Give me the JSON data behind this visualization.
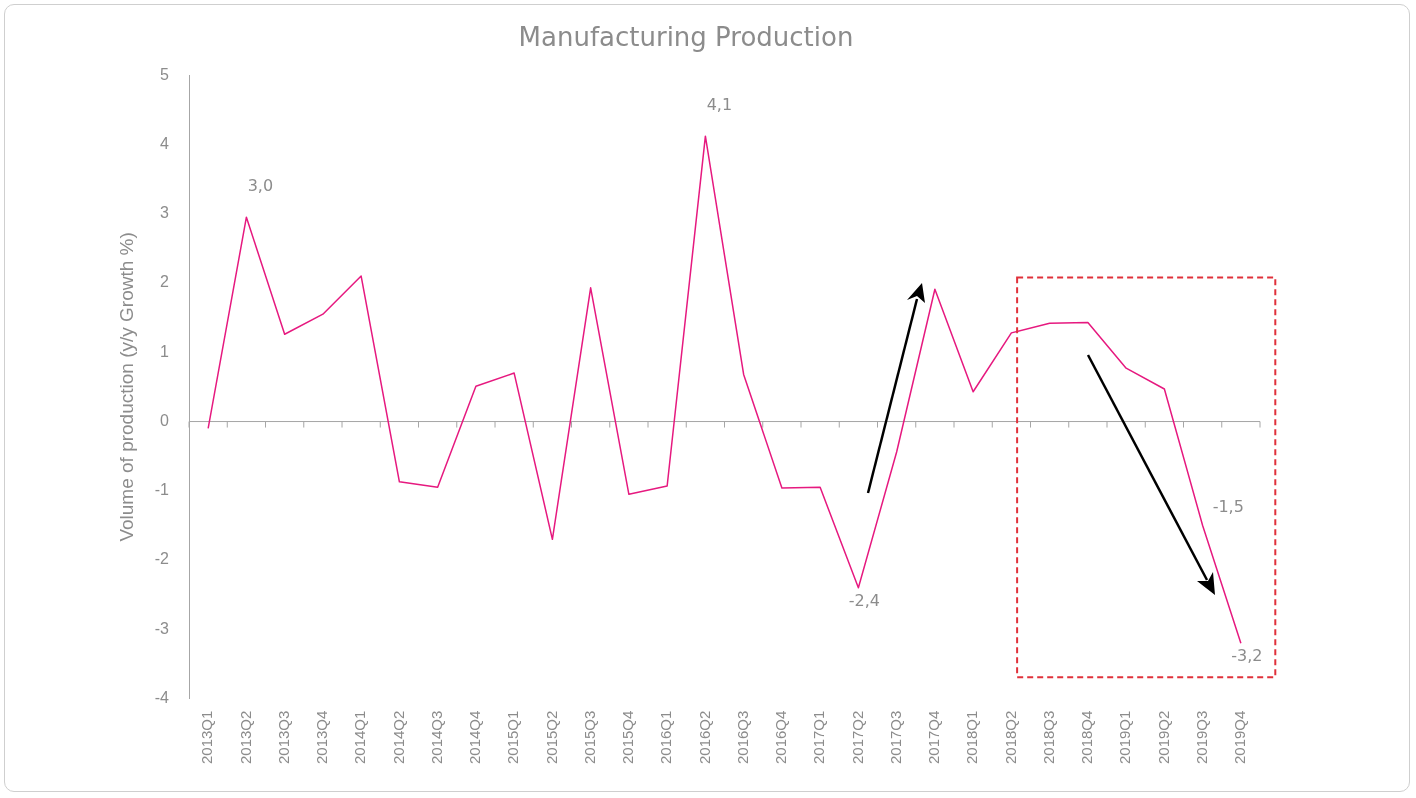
{
  "chart_data": {
    "type": "line",
    "title": "Manufacturing Production",
    "ylabel": "Volume of production (y/y Growth %)",
    "categories": [
      "2013Q1",
      "2013Q2",
      "2013Q3",
      "2013Q4",
      "2014Q1",
      "2014Q2",
      "2014Q3",
      "2014Q4",
      "2015Q1",
      "2015Q2",
      "2015Q3",
      "2015Q4",
      "2016Q1",
      "2016Q2",
      "2016Q3",
      "2016Q4",
      "2017Q1",
      "2017Q2",
      "2017Q3",
      "2017Q4",
      "2018Q1",
      "2018Q2",
      "2018Q3",
      "2018Q4",
      "2019Q1",
      "2019Q2",
      "2019Q3",
      "2019Q4"
    ],
    "series": [
      {
        "color": "#e6197f",
        "values": [
          -0.1,
          2.95,
          1.26,
          1.55,
          2.1,
          -0.87,
          -0.95,
          0.51,
          0.7,
          -1.7,
          1.93,
          -1.05,
          -0.93,
          4.12,
          0.68,
          -0.96,
          -0.95,
          -2.4,
          -0.44,
          1.91,
          0.43,
          1.28,
          1.42,
          1.43,
          0.77,
          0.47,
          -1.5,
          -3.2
        ],
        "value_labels": [
          null,
          "3,0",
          null,
          null,
          null,
          null,
          null,
          null,
          null,
          null,
          null,
          null,
          null,
          "4,1",
          null,
          null,
          null,
          "-2,4",
          null,
          null,
          null,
          null,
          null,
          null,
          null,
          null,
          "-1,5",
          "-3,2"
        ]
      }
    ],
    "ylim": [
      -4,
      5
    ],
    "yticks": [
      -4,
      -3,
      -2,
      -1,
      0,
      1,
      2,
      3,
      4,
      5
    ],
    "grid": false,
    "legend": false,
    "marker": "none",
    "line_style": "solid",
    "ref_lines": [
      {
        "axis": "y",
        "value": 0,
        "color": "#a6a6a6",
        "line_style": "solid"
      }
    ]
  }
}
